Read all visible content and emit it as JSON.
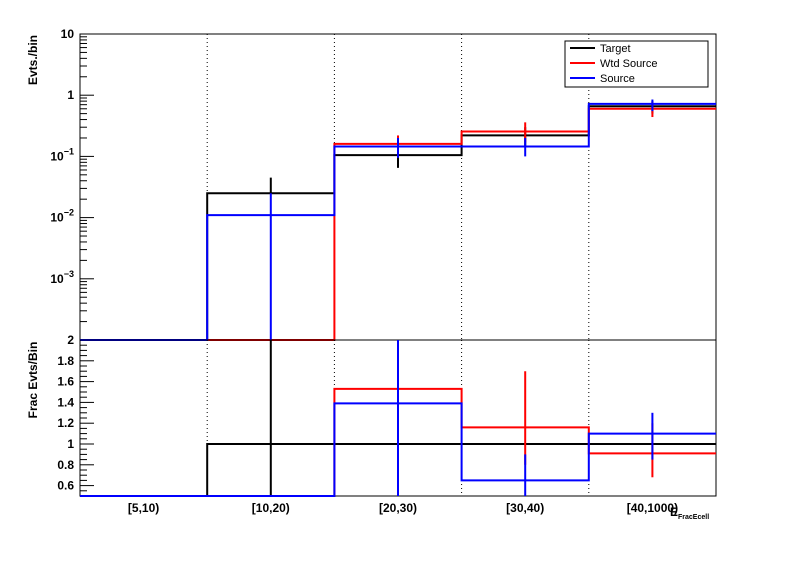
{
  "chart_data": [
    {
      "type": "line",
      "panel": "top",
      "ylabel": "Evts./bin",
      "yscale": "log",
      "ylim": [
        0.0001,
        10
      ],
      "categories": [
        "[5,10)",
        "[10,20)",
        "[20,30)",
        "[30,40)",
        "[40,1000)"
      ],
      "y_tick_labels": [
        {
          "v": 10,
          "base": "10",
          "exp": ""
        },
        {
          "v": 1,
          "base": "1",
          "exp": ""
        },
        {
          "v": 0.1,
          "base": "10",
          "exp": "−1"
        },
        {
          "v": 0.01,
          "base": "10",
          "exp": "−2"
        },
        {
          "v": 0.001,
          "base": "10",
          "exp": "−3"
        }
      ],
      "legend_position": "top-right",
      "series": [
        {
          "name": "Target",
          "color": "#000000",
          "values": [
            0,
            0.025,
            0.105,
            0.22,
            0.66
          ],
          "err_low": [
            0,
            0.025,
            0.065,
            0.15,
            0.5
          ],
          "err_high": [
            0,
            0.045,
            0.15,
            0.3,
            0.8
          ]
        },
        {
          "name": "Wtd Source",
          "color": "#ff0000",
          "values": [
            0,
            0,
            0.16,
            0.255,
            0.6
          ],
          "err_low": [
            0,
            0,
            0.11,
            0.17,
            0.44
          ],
          "err_high": [
            0,
            0,
            0.22,
            0.36,
            0.78
          ]
        },
        {
          "name": "Source",
          "color": "#0000ff",
          "values": [
            0,
            0.011,
            0.145,
            0.145,
            0.72
          ],
          "err_low": [
            0,
            0.0001,
            0.095,
            0.1,
            0.55
          ],
          "err_high": [
            0,
            0.025,
            0.2,
            0.2,
            0.85
          ]
        }
      ]
    },
    {
      "type": "line",
      "panel": "bottom",
      "ylabel": "Frac Evts/Bin",
      "ylim": [
        0.5,
        2
      ],
      "y_ticks": [
        0.6,
        0.8,
        1,
        1.2,
        1.4,
        1.6,
        1.8,
        2
      ],
      "categories": [
        "[5,10)",
        "[10,20)",
        "[20,30)",
        "[30,40)",
        "[40,1000)"
      ],
      "xlabel": "E",
      "xlabel_sub": "FracEcell",
      "series": [
        {
          "name": "Target",
          "color": "#000000",
          "values": [
            0.5,
            1.0,
            1.0,
            1.0,
            1.0
          ],
          "err_low": [
            null,
            0,
            0.7,
            null,
            null
          ],
          "err_high": [
            null,
            2,
            2,
            null,
            null
          ]
        },
        {
          "name": "Wtd Source",
          "color": "#ff0000",
          "values": [
            0.5,
            0.5,
            1.53,
            1.16,
            0.91
          ],
          "err_low": [
            null,
            null,
            0.75,
            0.8,
            0.68
          ],
          "err_high": [
            null,
            null,
            2,
            1.7,
            1.2
          ]
        },
        {
          "name": "Source",
          "color": "#0000ff",
          "values": [
            0.5,
            0.5,
            1.39,
            0.65,
            1.1
          ],
          "err_low": [
            null,
            null,
            0.5,
            0.5,
            0.85
          ],
          "err_high": [
            null,
            null,
            2,
            0.9,
            1.3
          ]
        }
      ]
    }
  ]
}
